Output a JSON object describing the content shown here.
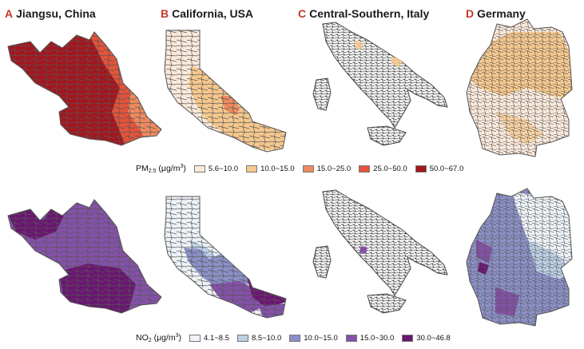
{
  "panels": [
    {
      "letter": "A",
      "title": "Jiangsu, China"
    },
    {
      "letter": "B",
      "title": "California, USA"
    },
    {
      "letter": "C",
      "title": "Central-Southern, Italy"
    },
    {
      "letter": "D",
      "title": "Germany"
    }
  ],
  "pm25_legend": {
    "title_main": "PM",
    "title_sub": "2.5",
    "title_unit": " (μg/m",
    "title_sup": "3",
    "title_close": ")",
    "items": [
      {
        "label": "5.6~10.0",
        "color": "#fbeadb"
      },
      {
        "label": "10.0~15.0",
        "color": "#f6c88d"
      },
      {
        "label": "15.0~25.0",
        "color": "#ef8a5e"
      },
      {
        "label": "25.0~50.0",
        "color": "#e4533a"
      },
      {
        "label": "50.0~67.0",
        "color": "#a3161e"
      }
    ]
  },
  "no2_legend": {
    "title_main": "NO",
    "title_sub": "2",
    "title_unit": " (μg/m",
    "title_sup": "3",
    "title_close": ")",
    "items": [
      {
        "label": "4.1~8.5",
        "color": "#eef3f8"
      },
      {
        "label": "8.5~10.0",
        "color": "#bcd0e6"
      },
      {
        "label": "10.0~15.0",
        "color": "#8b90c6"
      },
      {
        "label": "15.0~30.0",
        "color": "#8451a8"
      },
      {
        "label": "30.0~46.8",
        "color": "#6a1670"
      }
    ]
  },
  "map_style": {
    "border": "#555555",
    "italy_fill": "#ffffff",
    "italy_border": "#444444"
  }
}
